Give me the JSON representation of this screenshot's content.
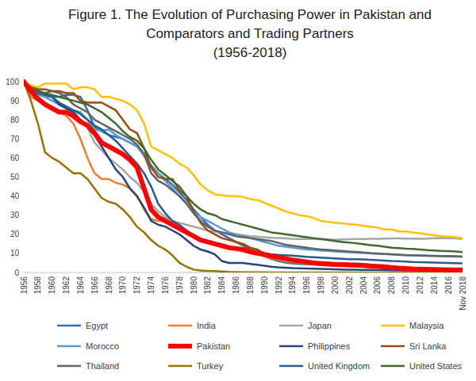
{
  "chart_data": {
    "type": "line",
    "title": "Figure 1. The Evolution of Purchasing Power in Pakistan and Comparators and Trading Partners",
    "subtitle": "(1956-2018)",
    "categories": [
      "1956",
      null,
      "1958",
      null,
      "1960",
      null,
      "1962",
      null,
      "1964",
      null,
      "1966",
      null,
      "1968",
      null,
      "1970",
      null,
      "1972",
      null,
      "1974",
      null,
      "1976",
      null,
      "1978",
      null,
      "1980",
      null,
      "1982",
      null,
      "1984",
      null,
      "1986",
      null,
      "1988",
      null,
      "1990",
      null,
      "1992",
      null,
      "1994",
      null,
      "1996",
      null,
      "1998",
      null,
      "2000",
      null,
      "2002",
      null,
      "2004",
      null,
      "2006",
      null,
      "2008",
      null,
      "2010",
      null,
      "2012",
      null,
      "2014",
      null,
      "2016",
      null,
      "Nov 2018"
    ],
    "ylim": [
      0,
      100
    ],
    "yticks": [
      0,
      10,
      20,
      30,
      40,
      50,
      60,
      70,
      80,
      90,
      100
    ],
    "grid": false,
    "legend": "bottom",
    "series": [
      {
        "name": "Egypt",
        "color": "#2f6ead",
        "values": [
          100,
          96,
          94,
          93,
          92,
          92,
          93,
          93,
          92,
          85,
          76,
          74,
          72,
          71,
          70,
          68,
          66,
          62,
          56,
          52,
          49,
          46,
          42,
          38,
          33,
          29,
          25,
          22,
          20,
          18,
          16,
          14,
          12,
          10,
          8.5,
          7,
          6,
          5.2,
          4.8,
          4.5,
          4.3,
          4.1,
          4,
          3.8,
          3.7,
          3.6,
          3.5,
          3.2,
          3,
          2.8,
          2.6,
          2.4,
          2.2,
          2.1,
          2,
          1.9,
          1.8,
          1.6,
          1.5,
          1.4,
          1.2,
          0.9,
          0.8
        ]
      },
      {
        "name": "India",
        "color": "#ed7d31",
        "values": [
          100,
          92,
          90,
          88,
          86,
          84,
          82,
          78,
          70,
          60,
          52,
          49,
          49,
          47,
          46,
          44,
          40,
          33,
          28,
          27,
          27,
          25,
          24,
          22,
          19,
          17,
          16,
          15,
          14,
          13,
          12,
          11,
          10,
          9.5,
          8.5,
          7.5,
          6.7,
          6,
          5.5,
          5,
          4.6,
          4.3,
          3.8,
          3.6,
          3.4,
          3.3,
          3.1,
          3,
          2.9,
          2.8,
          2.6,
          2.5,
          2.3,
          2,
          1.8,
          1.6,
          1.5,
          1.4,
          1.3,
          1.2,
          1.2,
          1.1,
          1.1
        ]
      },
      {
        "name": "Japan",
        "color": "#a5a5a5",
        "values": [
          100,
          96,
          94,
          92,
          90,
          88,
          86,
          84,
          80,
          76,
          68,
          64,
          60,
          57,
          54,
          50,
          47,
          42,
          36,
          32,
          29,
          27,
          26,
          25,
          24,
          23,
          22,
          21.5,
          21,
          20.5,
          20,
          19.5,
          19,
          18.8,
          18.5,
          18.2,
          18,
          17.8,
          17.6,
          17.5,
          17.5,
          17.5,
          17.4,
          17.3,
          17.2,
          17.3,
          17.4,
          17.5,
          17.5,
          17.6,
          17.6,
          17.7,
          17.8,
          17.8,
          17.7,
          17.7,
          17.6,
          17.7,
          17.9,
          18,
          17.9,
          17.8,
          17.5
        ]
      },
      {
        "name": "Malaysia",
        "color": "#ffc000",
        "values": [
          100,
          98,
          97,
          99,
          99,
          99,
          99,
          96,
          97,
          97,
          96,
          92,
          92,
          91,
          90,
          88,
          85,
          78,
          66,
          64,
          62,
          60,
          57,
          55,
          51,
          46,
          43,
          41,
          40.5,
          40,
          40,
          39.5,
          38.5,
          38,
          36.5,
          35,
          33.5,
          32,
          31,
          30,
          29.5,
          28.5,
          27,
          26.5,
          26,
          25.7,
          25.3,
          25,
          24.5,
          24,
          23.5,
          22.5,
          22.5,
          21.5,
          21.5,
          21,
          20.5,
          20,
          19.5,
          19,
          18.8,
          18.5,
          17.8
        ]
      },
      {
        "name": "Morocco",
        "color": "#5b9bd5",
        "values": [
          100,
          96,
          93,
          92,
          90,
          88,
          86,
          85,
          84,
          80,
          75,
          74,
          75,
          72,
          70,
          68,
          66,
          61,
          55,
          52,
          48,
          44,
          40,
          36,
          32,
          29,
          27,
          25,
          23,
          21,
          20,
          19,
          18,
          17,
          16,
          15,
          14,
          13.5,
          13,
          12.5,
          12,
          11.8,
          11.5,
          11.3,
          11,
          10.8,
          10.6,
          10.4,
          10.2,
          10,
          9.8,
          9.6,
          9.4,
          9.2,
          9,
          8.9,
          8.8,
          8.7,
          8.6,
          8.5,
          8.4,
          8.3,
          8.2
        ]
      },
      {
        "name": "Pakistan",
        "color": "#ff0000",
        "line_style": "thick",
        "values": [
          100,
          95,
          91,
          88,
          86,
          84,
          84,
          82,
          79,
          77,
          73,
          68,
          66,
          64,
          62,
          59,
          55,
          44,
          33,
          29,
          27,
          25,
          23,
          21,
          19,
          17,
          16,
          15,
          14,
          13,
          12.5,
          12,
          11,
          10,
          9.5,
          8.5,
          8,
          7.3,
          6.5,
          6,
          5.5,
          5,
          4.7,
          4.5,
          4.3,
          4.2,
          4,
          3.9,
          3.7,
          3.4,
          3.2,
          3,
          2.6,
          2.3,
          2.1,
          1.9,
          1.8,
          1.7,
          1.6,
          1.5,
          1.4,
          1.4,
          1.3
        ]
      },
      {
        "name": "Philippines",
        "color": "#264478",
        "values": [
          100,
          96,
          95,
          93,
          92,
          88,
          86,
          84,
          80,
          76,
          72,
          66,
          60,
          54,
          50,
          44,
          40,
          34,
          27,
          25,
          24,
          22,
          20,
          17,
          14,
          12,
          11,
          9.5,
          6,
          5,
          5,
          5,
          4.5,
          4,
          3.5,
          3,
          2.7,
          2.5,
          2.3,
          2.2,
          2.1,
          2,
          1.9,
          1.8,
          1.7,
          1.6,
          1.5,
          1.5,
          1.4,
          1.3,
          1.3,
          1.2,
          1.1,
          1.1,
          1,
          1,
          1,
          0.9,
          0.9,
          0.9,
          0.9,
          0.8,
          0.8
        ]
      },
      {
        "name": "Sri Lanka",
        "color": "#9e480e",
        "values": [
          100,
          97,
          96,
          96,
          95,
          95,
          94,
          94,
          90,
          89,
          89,
          89,
          87,
          85,
          80,
          75,
          73,
          65,
          55,
          50,
          49,
          49,
          43,
          40,
          32,
          26,
          22,
          20,
          18,
          17,
          16,
          15,
          13,
          12,
          10,
          9,
          8,
          7.5,
          7,
          6.5,
          6,
          5.5,
          5,
          4.8,
          4.5,
          4.2,
          3.8,
          3.5,
          3.3,
          3.1,
          2.9,
          2.6,
          2.3,
          2.1,
          2,
          1.9,
          1.8,
          1.7,
          1.6,
          1.6,
          1.5,
          1.4,
          1.4
        ]
      },
      {
        "name": "Thailand",
        "color": "#636363",
        "values": [
          100,
          96,
          95,
          94,
          95,
          94,
          92,
          88,
          86,
          84,
          80,
          78,
          76,
          74,
          72,
          70,
          67,
          62,
          52,
          48,
          46,
          43,
          40,
          36,
          31,
          27,
          24,
          22,
          21,
          20,
          19,
          18.5,
          18,
          17.5,
          17,
          16.5,
          15.5,
          14.5,
          14,
          13.5,
          13,
          12.5,
          12,
          11.8,
          11.5,
          11.3,
          11,
          10.8,
          10.5,
          10.2,
          10,
          9.7,
          9.5,
          9.3,
          9.1,
          9,
          8.9,
          8.8,
          8.7,
          8.6,
          8.6,
          8.5,
          8.4
        ]
      },
      {
        "name": "Turkey",
        "color": "#997300",
        "values": [
          100,
          90,
          78,
          63,
          60,
          58,
          55,
          52,
          52,
          49,
          44,
          39,
          37,
          36,
          33,
          29,
          24,
          21,
          17,
          14,
          12,
          9,
          5,
          3,
          1.5,
          1,
          0.8,
          0.7,
          0.5,
          0.3,
          0.2,
          0.15,
          0.1,
          0.08,
          0.06,
          0.05,
          0.04,
          0.03,
          0.02,
          0.01,
          0.01,
          0,
          0,
          0,
          0,
          0,
          0,
          0,
          0,
          0,
          0,
          0,
          0,
          0,
          0,
          0,
          0,
          0,
          0,
          0,
          0,
          0,
          0
        ]
      },
      {
        "name": "United Kingdom",
        "color": "#255e91",
        "values": [
          100,
          96,
          94,
          93,
          92,
          89,
          87,
          85,
          83,
          80,
          77,
          75,
          72,
          69,
          65,
          61,
          57,
          52,
          45,
          36,
          31,
          27,
          25,
          22,
          19,
          17,
          15.5,
          14.5,
          14,
          13,
          12.5,
          12,
          11.5,
          11,
          10,
          9.5,
          9.2,
          9,
          8.8,
          8.5,
          8.2,
          8,
          7.8,
          7.6,
          7.4,
          7.2,
          7,
          6.9,
          6.8,
          6.6,
          6.4,
          6.2,
          6,
          5.9,
          5.7,
          5.5,
          5.4,
          5.3,
          5.2,
          5.1,
          5,
          4.9,
          4.8
        ]
      },
      {
        "name": "United States",
        "color": "#43682b",
        "values": [
          100,
          96,
          95,
          94,
          93,
          92,
          91,
          90,
          89,
          88,
          86,
          84,
          81,
          78,
          74,
          71,
          69,
          65,
          59,
          54,
          51,
          48,
          45,
          40,
          36,
          33,
          31,
          30,
          28,
          27,
          26,
          25,
          24,
          23,
          22,
          21,
          20.5,
          20,
          19.5,
          19,
          18.5,
          18,
          17.5,
          17,
          16.5,
          16,
          15.7,
          15.3,
          14.8,
          14.3,
          14,
          13.5,
          13,
          12.8,
          12.5,
          12.3,
          12,
          11.7,
          11.5,
          11.3,
          11.2,
          11,
          10.7
        ]
      }
    ]
  }
}
